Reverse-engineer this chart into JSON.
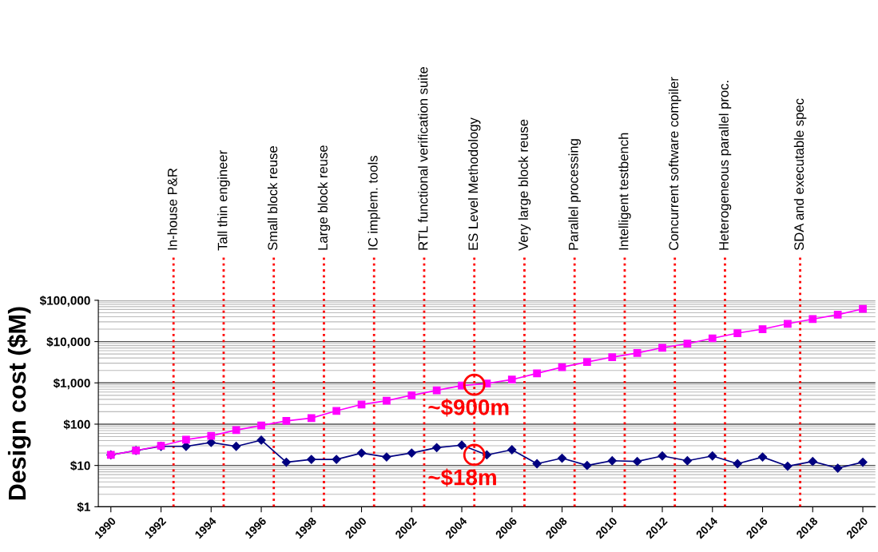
{
  "chart_data": {
    "type": "line",
    "ylabel": "Design cost ($M)",
    "x": [
      1990,
      1991,
      1992,
      1993,
      1994,
      1995,
      1996,
      1997,
      1998,
      1999,
      2000,
      2001,
      2002,
      2003,
      2004,
      2005,
      2006,
      2007,
      2008,
      2009,
      2010,
      2011,
      2012,
      2013,
      2014,
      2015,
      2016,
      2017,
      2018,
      2019,
      2020
    ],
    "series": [
      {
        "color": "#ff00ff",
        "marker": "square",
        "values": [
          18,
          23,
          30,
          42,
          52,
          72,
          93,
          120,
          140,
          210,
          300,
          370,
          500,
          660,
          860,
          960,
          1200,
          1700,
          2400,
          3200,
          4200,
          5300,
          7100,
          8900,
          12000,
          16000,
          20000,
          27000,
          35000,
          45000,
          62000
        ]
      },
      {
        "color": "#000080",
        "marker": "diamond",
        "values": [
          18,
          23,
          29,
          29,
          36,
          29,
          41,
          12,
          14,
          14,
          20,
          16,
          20,
          27,
          31,
          18,
          24,
          11,
          15,
          10,
          13,
          12.5,
          17,
          13,
          17,
          11,
          16,
          9.6,
          12.5,
          8.6,
          12
        ]
      }
    ],
    "log": "y",
    "xlim": [
      1989.5,
      2020.5
    ],
    "ylim": [
      1,
      100000
    ],
    "xticks": [
      1990,
      1992,
      1994,
      1996,
      1998,
      2000,
      2002,
      2004,
      2006,
      2008,
      2010,
      2012,
      2014,
      2016,
      2018,
      2020
    ],
    "yticks": [
      {
        "value": 1,
        "label": "$1"
      },
      {
        "value": 10,
        "label": "$10"
      },
      {
        "value": 100,
        "label": "$100"
      },
      {
        "value": 1000,
        "label": "$1,000"
      },
      {
        "value": 10000,
        "label": "$10,000"
      },
      {
        "value": 100000,
        "label": "$100,000"
      }
    ],
    "grid": "y",
    "line_style": "solid",
    "ref_lines": [
      {
        "axis": "x",
        "value": 1992.5,
        "label": "In-house P&R",
        "color": "#ff0000",
        "line_style": "dotted"
      },
      {
        "axis": "x",
        "value": 1994.5,
        "label": "Tall thin engineer",
        "color": "#ff0000",
        "line_style": "dotted"
      },
      {
        "axis": "x",
        "value": 1996.5,
        "label": "Small block reuse",
        "color": "#ff0000",
        "line_style": "dotted"
      },
      {
        "axis": "x",
        "value": 1998.5,
        "label": "Large block reuse",
        "color": "#ff0000",
        "line_style": "dotted"
      },
      {
        "axis": "x",
        "value": 2000.5,
        "label": "IC implem. tools",
        "color": "#ff0000",
        "line_style": "dotted"
      },
      {
        "axis": "x",
        "value": 2002.5,
        "label": "RTL functional verification suite",
        "color": "#ff0000",
        "line_style": "dotted"
      },
      {
        "axis": "x",
        "value": 2004.5,
        "label": "ES Level Methodology",
        "color": "#ff0000",
        "line_style": "dotted"
      },
      {
        "axis": "x",
        "value": 2006.5,
        "label": "Very large block reuse",
        "color": "#ff0000",
        "line_style": "dotted"
      },
      {
        "axis": "x",
        "value": 2008.5,
        "label": "Parallel processing",
        "color": "#ff0000",
        "line_style": "dotted"
      },
      {
        "axis": "x",
        "value": 2010.5,
        "label": "Intelligent testbench",
        "color": "#ff0000",
        "line_style": "dotted"
      },
      {
        "axis": "x",
        "value": 2012.5,
        "label": "Concurrent software compiler",
        "color": "#ff0000",
        "line_style": "dotted"
      },
      {
        "axis": "x",
        "value": 2014.5,
        "label": "Heterogeneous parallel proc.",
        "color": "#ff0000",
        "line_style": "dotted"
      },
      {
        "axis": "x",
        "value": 2017.5,
        "label": "SDA and executable spec",
        "color": "#ff0000",
        "line_style": "dotted"
      }
    ],
    "annotations": [
      {
        "text": "~$900m",
        "x": 2004.5,
        "y": 900
      },
      {
        "text": "~$18m",
        "x": 2004.5,
        "y": 18
      }
    ]
  }
}
